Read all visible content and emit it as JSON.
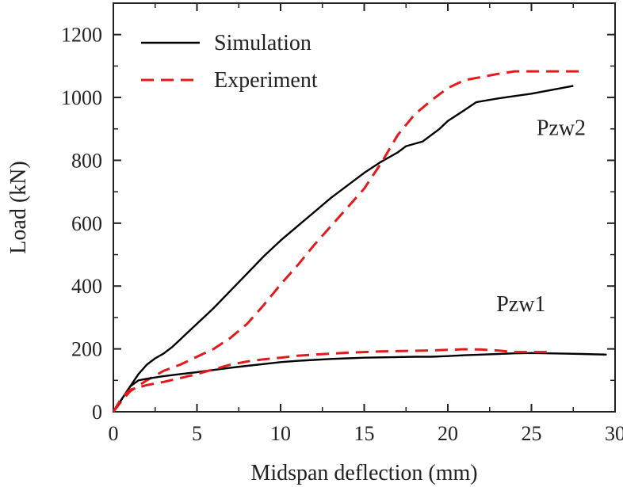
{
  "chart_data": {
    "type": "line",
    "title": "",
    "xlabel": "Midspan deflection (mm)",
    "ylabel": "Load (kN)",
    "xlim": [
      0,
      30
    ],
    "ylim": [
      0,
      1300
    ],
    "xticks": [
      0,
      5,
      10,
      15,
      20,
      25,
      30
    ],
    "yticks": [
      0,
      200,
      400,
      600,
      800,
      1000,
      1200
    ],
    "legend": [
      "Simulation",
      "Experiment"
    ],
    "legend_position": "top-left",
    "colors": {
      "simulation": "#000000",
      "experiment": "#e31a1c",
      "axis": "#222222"
    },
    "annotations": [
      {
        "text": "Pzw2",
        "x": 25.3,
        "y": 880
      },
      {
        "text": "Pzw1",
        "x": 22.9,
        "y": 320
      }
    ],
    "series": [
      {
        "name": "Simulation",
        "specimen": "Pzw2",
        "style": "solid",
        "x": [
          0,
          0.5,
          1.0,
          1.5,
          2.0,
          2.5,
          3.0,
          3.5,
          4.0,
          4.5,
          5.0,
          6.0,
          7.0,
          8.0,
          9.0,
          10.0,
          11.0,
          12.0,
          13.0,
          14.0,
          15.0,
          16.0,
          17.0,
          17.5,
          18.5,
          19.5,
          20.0,
          21.0,
          21.7,
          23.0,
          25.0,
          27.5
        ],
        "y": [
          0,
          40,
          80,
          120,
          150,
          170,
          185,
          205,
          230,
          255,
          280,
          330,
          385,
          440,
          495,
          545,
          590,
          635,
          680,
          720,
          760,
          795,
          825,
          845,
          860,
          900,
          925,
          960,
          985,
          997,
          1012,
          1037
        ]
      },
      {
        "name": "Experiment",
        "specimen": "Pzw2",
        "style": "dashed",
        "x": [
          0,
          0.5,
          1.0,
          2.0,
          3.0,
          4.0,
          5.0,
          6.0,
          7.0,
          8.0,
          9.0,
          10.0,
          11.0,
          12.0,
          13.0,
          14.0,
          15.0,
          16.0,
          17.0,
          18.0,
          19.0,
          20.0,
          21.0,
          22.0,
          23.0,
          24.0,
          25.0,
          26.0,
          27.0,
          28.0
        ],
        "y": [
          0,
          35,
          65,
          100,
          130,
          150,
          175,
          200,
          235,
          280,
          340,
          405,
          465,
          530,
          590,
          650,
          710,
          790,
          880,
          945,
          990,
          1030,
          1055,
          1065,
          1075,
          1083,
          1083,
          1083,
          1083,
          1083
        ]
      },
      {
        "name": "Simulation",
        "specimen": "Pzw1",
        "style": "solid",
        "x": [
          0,
          0.5,
          1.0,
          1.5,
          2.0,
          3.0,
          4.0,
          5.0,
          6.0,
          7.0,
          8.0,
          9.0,
          10.0,
          11.0,
          12.0,
          13.0,
          14.0,
          15.0,
          16.0,
          17.0,
          18.0,
          19.0,
          20.0,
          21.0,
          22.0,
          23.0,
          24.0,
          25.0,
          26.0,
          27.0,
          28.0,
          29.5
        ],
        "y": [
          0,
          40,
          80,
          100,
          105,
          113,
          120,
          126,
          133,
          140,
          146,
          152,
          158,
          162,
          165,
          168,
          170,
          172,
          173,
          174,
          175,
          175,
          177,
          180,
          182,
          184,
          186,
          187,
          186,
          185,
          184,
          182
        ]
      },
      {
        "name": "Experiment",
        "specimen": "Pzw1",
        "style": "dashed",
        "x": [
          0,
          0.5,
          1.0,
          2.0,
          3.0,
          4.0,
          5.0,
          6.0,
          7.0,
          8.0,
          9.0,
          10.0,
          11.0,
          12.0,
          13.0,
          14.0,
          15.0,
          16.0,
          17.0,
          18.0,
          19.0,
          20.0,
          21.0,
          22.0,
          23.0,
          24.0,
          25.0,
          26.0
        ],
        "y": [
          0,
          45,
          70,
          85,
          95,
          107,
          120,
          135,
          150,
          160,
          167,
          172,
          178,
          182,
          185,
          188,
          190,
          192,
          193,
          194,
          195,
          197,
          199,
          198,
          195,
          190,
          190,
          190
        ]
      }
    ]
  }
}
